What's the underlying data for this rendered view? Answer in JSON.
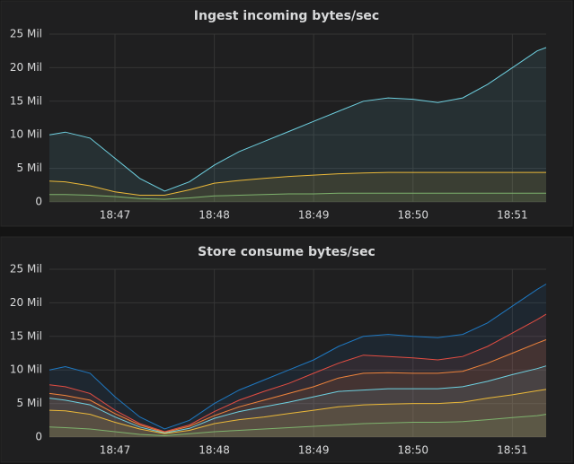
{
  "chart_data": [
    {
      "type": "line",
      "title": "Ingest incoming bytes/sec",
      "x": [
        46.34,
        46.5,
        46.75,
        47.0,
        47.25,
        47.5,
        47.75,
        48.0,
        48.25,
        48.5,
        48.75,
        49.0,
        49.25,
        49.5,
        49.75,
        50.0,
        50.25,
        50.5,
        50.75,
        51.0,
        51.25,
        51.34
      ],
      "xlim": [
        46.34,
        51.34
      ],
      "xticks": [
        {
          "value": 47,
          "label": "18:47"
        },
        {
          "value": 48,
          "label": "18:48"
        },
        {
          "value": 49,
          "label": "18:49"
        },
        {
          "value": 50,
          "label": "18:50"
        },
        {
          "value": 51,
          "label": "18:51"
        }
      ],
      "ylim": [
        0,
        25
      ],
      "yticks": [
        0,
        {
          "value": 5,
          "label": "5 Mil"
        },
        {
          "value": 10,
          "label": "10 Mil"
        },
        {
          "value": 15,
          "label": "15 Mil"
        },
        {
          "value": 20,
          "label": "20 Mil"
        },
        {
          "value": 25,
          "label": "25 Mil"
        }
      ],
      "grid": true,
      "series": [
        {
          "color": "#6ed0e0",
          "values": [
            10,
            10.4,
            9.5,
            6.5,
            3.5,
            1.6,
            3,
            5.5,
            7.5,
            9,
            10.5,
            12,
            13.5,
            15,
            15.5,
            15.3,
            14.8,
            15.5,
            17.5,
            20,
            22.5,
            23
          ]
        },
        {
          "color": "#eab839",
          "values": [
            3.1,
            3.0,
            2.4,
            1.5,
            1.0,
            1.0,
            1.8,
            2.8,
            3.2,
            3.5,
            3.8,
            4.0,
            4.2,
            4.3,
            4.4,
            4.4,
            4.4,
            4.4,
            4.4,
            4.4,
            4.4,
            4.4
          ]
        },
        {
          "color": "#7eb26d",
          "values": [
            1.1,
            1.1,
            1.0,
            0.8,
            0.5,
            0.4,
            0.6,
            0.9,
            1.0,
            1.1,
            1.2,
            1.2,
            1.3,
            1.3,
            1.3,
            1.3,
            1.3,
            1.3,
            1.3,
            1.3,
            1.3,
            1.3
          ]
        }
      ]
    },
    {
      "type": "line",
      "title": "Store consume bytes/sec",
      "x": [
        46.34,
        46.5,
        46.75,
        47.0,
        47.25,
        47.5,
        47.75,
        48.0,
        48.25,
        48.5,
        48.75,
        49.0,
        49.25,
        49.5,
        49.75,
        50.0,
        50.25,
        50.5,
        50.75,
        51.0,
        51.25,
        51.34
      ],
      "xlim": [
        46.34,
        51.34
      ],
      "xticks": [
        {
          "value": 47,
          "label": "18:47"
        },
        {
          "value": 48,
          "label": "18:48"
        },
        {
          "value": 49,
          "label": "18:49"
        },
        {
          "value": 50,
          "label": "18:50"
        },
        {
          "value": 51,
          "label": "18:51"
        }
      ],
      "ylim": [
        0,
        25
      ],
      "yticks": [
        0,
        {
          "value": 5,
          "label": "5 Mil"
        },
        {
          "value": 10,
          "label": "10 Mil"
        },
        {
          "value": 15,
          "label": "15 Mil"
        },
        {
          "value": 20,
          "label": "20 Mil"
        },
        {
          "value": 25,
          "label": "25 Mil"
        }
      ],
      "grid": true,
      "series": [
        {
          "color": "#1f78c1",
          "values": [
            10,
            10.5,
            9.5,
            6,
            3,
            1.2,
            2.5,
            5,
            7,
            8.5,
            10,
            11.5,
            13.5,
            15,
            15.3,
            15,
            14.8,
            15.3,
            17,
            19.5,
            22,
            22.8
          ]
        },
        {
          "color": "#e24d42",
          "values": [
            7.8,
            7.5,
            6.5,
            4,
            2,
            0.8,
            1.8,
            3.8,
            5.5,
            6.8,
            8,
            9.5,
            11,
            12.2,
            12,
            11.8,
            11.5,
            12,
            13.5,
            15.5,
            17.5,
            18.3
          ]
        },
        {
          "color": "#ef843c",
          "values": [
            6.5,
            6.2,
            5.5,
            3.5,
            1.8,
            0.7,
            1.6,
            3.2,
            4.5,
            5.5,
            6.5,
            7.5,
            8.8,
            9.5,
            9.6,
            9.5,
            9.5,
            9.8,
            11,
            12.5,
            14,
            14.5
          ]
        },
        {
          "color": "#6ed0e0",
          "values": [
            5.8,
            5.5,
            4.8,
            3,
            1.5,
            0.6,
            1.3,
            2.8,
            3.8,
            4.5,
            5.2,
            6,
            6.8,
            7,
            7.2,
            7.2,
            7.2,
            7.5,
            8.3,
            9.3,
            10.2,
            10.6
          ]
        },
        {
          "color": "#eab839",
          "values": [
            4,
            3.9,
            3.4,
            2.2,
            1.2,
            0.5,
            1,
            2,
            2.6,
            3,
            3.5,
            4,
            4.5,
            4.8,
            4.9,
            5,
            5,
            5.2,
            5.8,
            6.3,
            6.9,
            7.1
          ]
        },
        {
          "color": "#7eb26d",
          "values": [
            1.5,
            1.4,
            1.2,
            0.8,
            0.4,
            0.2,
            0.5,
            0.8,
            1.0,
            1.2,
            1.4,
            1.6,
            1.8,
            2.0,
            2.1,
            2.2,
            2.2,
            2.3,
            2.6,
            2.9,
            3.2,
            3.4
          ]
        }
      ]
    }
  ]
}
